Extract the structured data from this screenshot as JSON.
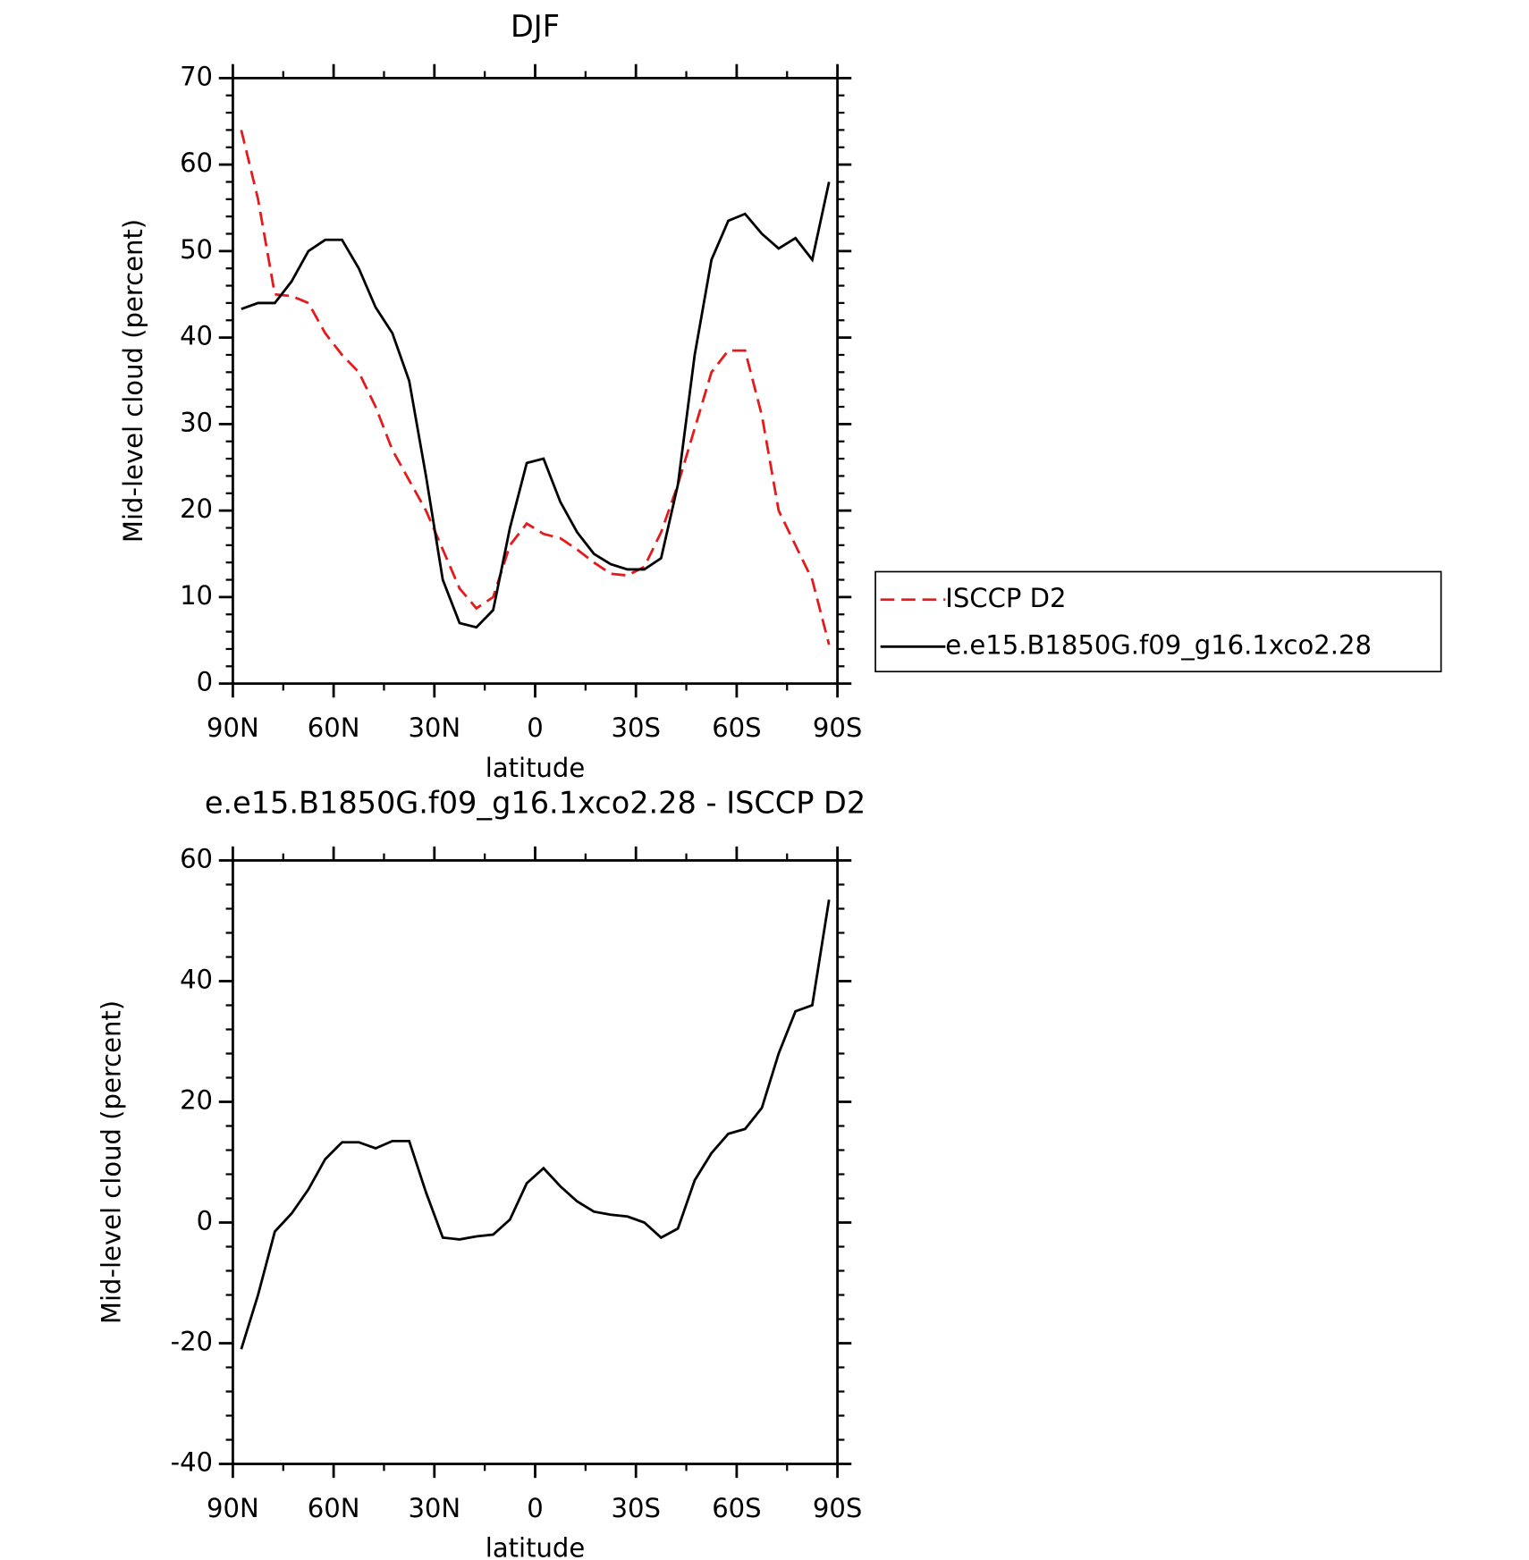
{
  "chart_data": [
    {
      "type": "line",
      "title": "DJF",
      "xlabel": "latitude",
      "ylabel": "Mid-level cloud (percent)",
      "x": [
        87.5,
        82.5,
        77.5,
        72.5,
        67.5,
        62.5,
        57.5,
        52.5,
        47.5,
        42.5,
        37.5,
        32.5,
        27.5,
        22.5,
        17.5,
        12.5,
        7.5,
        2.5,
        -2.5,
        -7.5,
        -12.5,
        -17.5,
        -22.5,
        -27.5,
        -32.5,
        -37.5,
        -42.5,
        -47.5,
        -52.5,
        -57.5,
        -62.5,
        -67.5,
        -72.5,
        -77.5,
        -82.5,
        -87.5
      ],
      "series": [
        {
          "name": "ISCCP D2",
          "color": "#e41a1c",
          "dashed": true,
          "values": [
            64,
            56,
            45,
            44.8,
            44,
            40.5,
            38,
            36,
            32,
            27,
            23.5,
            20,
            15.5,
            11,
            8.7,
            10,
            16,
            18.5,
            17.3,
            16.8,
            15.5,
            14,
            12.7,
            12.5,
            13.5,
            17.5,
            23,
            29.5,
            36,
            38.5,
            38.5,
            31,
            20,
            16,
            12,
            4.5
          ]
        },
        {
          "name": "e.e15.B1850G.f09_g16.1xco2.28",
          "color": "#000000",
          "dashed": false,
          "values": [
            43.3,
            44,
            44,
            46.5,
            50,
            51.3,
            51.3,
            48,
            43.5,
            40.5,
            35,
            24,
            12,
            7,
            6.5,
            8.5,
            18,
            25.5,
            26,
            21,
            17.5,
            15,
            13.8,
            13.2,
            13.2,
            14.5,
            23,
            38,
            49,
            53.5,
            54.3,
            52,
            50.3,
            51.5,
            49,
            58
          ]
        }
      ],
      "xlim": [
        90,
        -90
      ],
      "xticks": [
        {
          "value": 90,
          "label": "90N"
        },
        {
          "value": 60,
          "label": "60N"
        },
        {
          "value": 30,
          "label": "30N"
        },
        0,
        {
          "value": -30,
          "label": "30S"
        },
        {
          "value": -60,
          "label": "60S"
        },
        {
          "value": -90,
          "label": "90S"
        }
      ],
      "ylim": [
        0,
        70
      ],
      "yticks": [
        0,
        10,
        20,
        30,
        40,
        50,
        60,
        70
      ],
      "legend": "right"
    },
    {
      "type": "line",
      "title": "e.e15.B1850G.f09_g16.1xco2.28 - ISCCP D2",
      "xlabel": "latitude",
      "ylabel": "Mid-level cloud (percent)",
      "x": [
        87.5,
        82.5,
        77.5,
        72.5,
        67.5,
        62.5,
        57.5,
        52.5,
        47.5,
        42.5,
        37.5,
        32.5,
        27.5,
        22.5,
        17.5,
        12.5,
        7.5,
        2.5,
        -2.5,
        -7.5,
        -12.5,
        -17.5,
        -22.5,
        -27.5,
        -32.5,
        -37.5,
        -42.5,
        -47.5,
        -52.5,
        -57.5,
        -62.5,
        -67.5,
        -72.5,
        -77.5,
        -82.5,
        -87.5
      ],
      "series": [
        {
          "color": "#000000",
          "dashed": false,
          "values": [
            -21,
            -12,
            -1.5,
            1.5,
            5.5,
            10.5,
            13.3,
            13.3,
            12.3,
            13.5,
            13.5,
            5,
            -2.5,
            -2.8,
            -2.3,
            -2,
            0.5,
            6.5,
            9,
            6,
            3.5,
            1.8,
            1.3,
            1,
            0,
            -2.5,
            -1,
            7,
            11.5,
            14.7,
            15.5,
            19,
            28,
            35,
            36,
            53.5
          ]
        }
      ],
      "xlim": [
        90,
        -90
      ],
      "xticks": [
        {
          "value": 90,
          "label": "90N"
        },
        {
          "value": 60,
          "label": "60N"
        },
        {
          "value": 30,
          "label": "30N"
        },
        0,
        {
          "value": -30,
          "label": "30S"
        },
        {
          "value": -60,
          "label": "60S"
        },
        {
          "value": -90,
          "label": "90S"
        }
      ],
      "ylim": [
        -40,
        60
      ],
      "yticks": [
        -40,
        -20,
        0,
        20,
        40,
        60
      ]
    }
  ]
}
